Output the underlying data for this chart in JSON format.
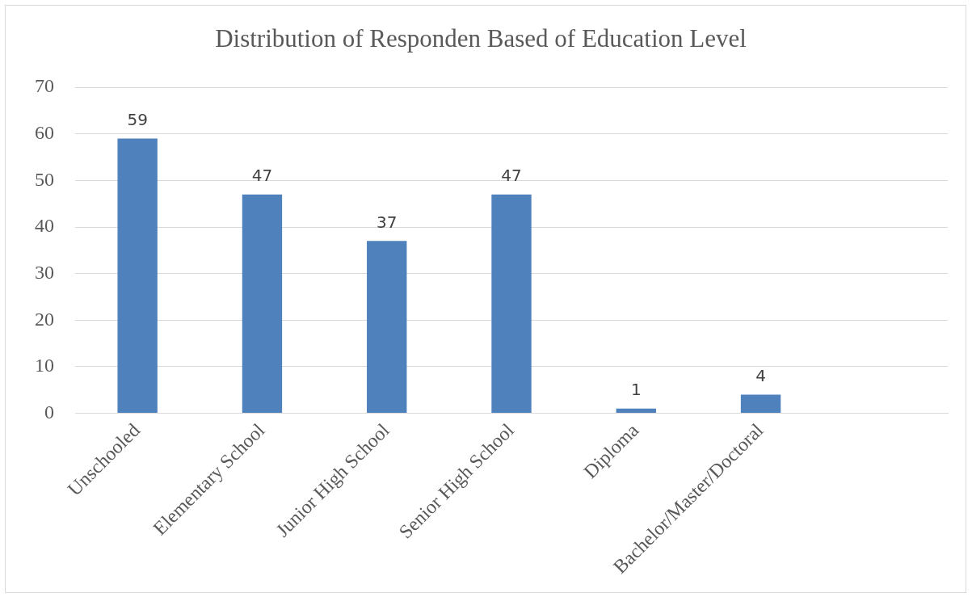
{
  "chart_data": {
    "type": "bar",
    "title": "Distribution of Responden Based of Education Level",
    "categories": [
      "Unschooled",
      "Elementary School",
      "Junior High School",
      "Senior High School",
      "Diploma",
      "Bachelor/Master/Doctoral",
      null
    ],
    "values": [
      59,
      47,
      37,
      47,
      1,
      4,
      null
    ],
    "color": "#4f81bd",
    "ylim": [
      0,
      70
    ],
    "yticks": [
      0,
      10,
      20,
      30,
      40,
      50,
      60,
      70
    ],
    "grid": "y",
    "data_labels": true
  }
}
